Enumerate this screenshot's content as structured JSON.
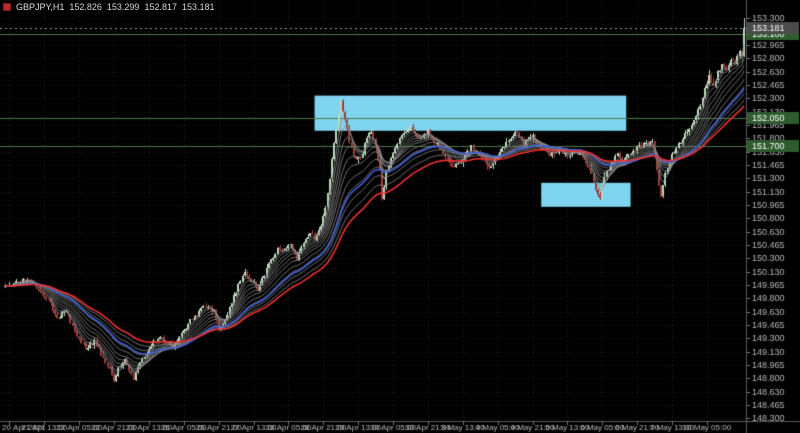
{
  "window_info": {
    "symbol_period": "GBPJPY,H1",
    "quote": {
      "open": "152.826",
      "high": "153.299",
      "low": "152.817",
      "close": "153.181"
    }
  },
  "colors": {
    "background": "#000000",
    "bull": "#bcd8bc",
    "bear": "#9e3c3c",
    "ema_fast_blue": "#3f5fd8",
    "ema_slow_red": "#f03030",
    "ribbon_gray": "#8c8c8c",
    "level_green": "#4a7a4a",
    "level_badge_bg": "#2e5c2e",
    "zone_blue": "#7fd4ef",
    "axis_text": "#b8b8b8",
    "badge_bg": "#4a4a4a",
    "badge_text": "#ffffff",
    "grid": "#232323",
    "separator": "#5a5a5a",
    "bid_line": "#9a9a9a",
    "tick": "#777777"
  },
  "chart_data": {
    "type": "candlestick",
    "symbol": "GBPJPY",
    "timeframe": "H1",
    "bars_total": 340,
    "seed": 11,
    "x_axis": {
      "first_label_bar": 2,
      "label_step_bars": 16,
      "labels": [
        "20 Apr 2021",
        "21 Apr 13:00",
        "22 Apr 05:00",
        "22 Apr 21:00",
        "23 Apr 13:00",
        "26 Apr 05:00",
        "26 Apr 21:00",
        "27 Apr 13:00",
        "28 Apr 05:00",
        "28 Apr 21:00",
        "29 Apr 13:00",
        "30 Apr 05:00",
        "30 Apr 21:00",
        "3 May 13:00",
        "4 May 05:00",
        "4 May 21:00",
        "5 May 13:00",
        "6 May 05:00",
        "6 May 21:00",
        "7 May 13:00",
        "10 May 05:00"
      ]
    },
    "y_axis": {
      "price_top": 153.525,
      "price_bottom": 148.2625,
      "labels": [
        "153.300",
        "153.135",
        "152.965",
        "152.800",
        "152.630",
        "152.465",
        "152.300",
        "152.130",
        "151.965",
        "151.800",
        "151.630",
        "151.465",
        "151.300",
        "151.130",
        "150.965",
        "150.800",
        "150.630",
        "150.465",
        "150.300",
        "150.130",
        "149.965",
        "149.800",
        "149.630",
        "149.465",
        "149.300",
        "149.130",
        "148.965",
        "148.800",
        "148.630",
        "148.465",
        "148.300"
      ]
    },
    "price_path_anchors": [
      [
        0,
        149.95
      ],
      [
        6,
        150.0
      ],
      [
        11,
        150.05
      ],
      [
        15,
        149.92
      ],
      [
        20,
        149.78
      ],
      [
        24,
        149.55
      ],
      [
        28,
        149.65
      ],
      [
        33,
        149.32
      ],
      [
        37,
        149.18
      ],
      [
        41,
        149.26
      ],
      [
        45,
        149.05
      ],
      [
        48,
        148.9
      ],
      [
        50,
        148.78
      ],
      [
        52,
        148.92
      ],
      [
        55,
        149.02
      ],
      [
        57,
        148.88
      ],
      [
        59,
        148.8
      ],
      [
        62,
        149.0
      ],
      [
        65,
        149.12
      ],
      [
        68,
        149.25
      ],
      [
        71,
        149.34
      ],
      [
        74,
        149.26
      ],
      [
        77,
        149.18
      ],
      [
        80,
        149.32
      ],
      [
        84,
        149.48
      ],
      [
        88,
        149.6
      ],
      [
        92,
        149.7
      ],
      [
        96,
        149.62
      ],
      [
        98,
        149.42
      ],
      [
        101,
        149.52
      ],
      [
        104,
        149.76
      ],
      [
        107,
        149.95
      ],
      [
        110,
        150.12
      ],
      [
        113,
        150.02
      ],
      [
        116,
        149.92
      ],
      [
        119,
        150.1
      ],
      [
        122,
        150.28
      ],
      [
        125,
        150.42
      ],
      [
        128,
        150.38
      ],
      [
        131,
        150.48
      ],
      [
        134,
        150.3
      ],
      [
        137,
        150.48
      ],
      [
        140,
        150.6
      ],
      [
        142,
        150.55
      ],
      [
        145,
        150.72
      ],
      [
        147,
        150.95
      ],
      [
        149,
        151.3
      ],
      [
        151,
        151.75
      ],
      [
        153,
        152.1
      ],
      [
        154,
        152.26
      ],
      [
        156,
        152.04
      ],
      [
        158,
        151.76
      ],
      [
        161,
        151.52
      ],
      [
        164,
        151.6
      ],
      [
        166,
        151.82
      ],
      [
        168,
        151.88
      ],
      [
        170,
        151.66
      ],
      [
        172,
        151.4
      ],
      [
        173,
        151.02
      ],
      [
        175,
        151.38
      ],
      [
        178,
        151.6
      ],
      [
        182,
        151.86
      ],
      [
        186,
        151.92
      ],
      [
        190,
        151.78
      ],
      [
        194,
        151.88
      ],
      [
        198,
        151.72
      ],
      [
        202,
        151.54
      ],
      [
        206,
        151.42
      ],
      [
        210,
        151.56
      ],
      [
        214,
        151.68
      ],
      [
        218,
        151.58
      ],
      [
        222,
        151.44
      ],
      [
        226,
        151.58
      ],
      [
        230,
        151.74
      ],
      [
        234,
        151.88
      ],
      [
        238,
        151.72
      ],
      [
        242,
        151.82
      ],
      [
        246,
        151.68
      ],
      [
        250,
        151.58
      ],
      [
        254,
        151.66
      ],
      [
        258,
        151.56
      ],
      [
        262,
        151.64
      ],
      [
        266,
        151.5
      ],
      [
        269,
        151.36
      ],
      [
        271,
        151.16
      ],
      [
        273,
        151.06
      ],
      [
        275,
        151.3
      ],
      [
        278,
        151.48
      ],
      [
        281,
        151.58
      ],
      [
        284,
        151.5
      ],
      [
        287,
        151.62
      ],
      [
        290,
        151.68
      ],
      [
        294,
        151.72
      ],
      [
        297,
        151.74
      ],
      [
        299,
        151.38
      ],
      [
        301,
        151.06
      ],
      [
        303,
        151.36
      ],
      [
        306,
        151.6
      ],
      [
        309,
        151.72
      ],
      [
        312,
        151.84
      ],
      [
        315,
        151.94
      ],
      [
        317,
        152.06
      ],
      [
        319,
        152.22
      ],
      [
        321,
        152.4
      ],
      [
        323,
        152.56
      ],
      [
        325,
        152.44
      ],
      [
        327,
        152.62
      ],
      [
        329,
        152.72
      ],
      [
        331,
        152.64
      ],
      [
        333,
        152.78
      ],
      [
        335,
        152.72
      ],
      [
        337,
        152.9
      ],
      [
        338,
        152.83
      ],
      [
        339,
        153.18
      ]
    ],
    "last_candle_ohlc": [
      152.826,
      153.299,
      152.817,
      153.181
    ],
    "indicators": {
      "ema_ribbon_periods": [
        4,
        6,
        9,
        12,
        16,
        20,
        26,
        32,
        39,
        47
      ],
      "ema_blue_period": 34,
      "ema_red_period": 55
    },
    "horizontal_lines": [
      {
        "price": 153.1,
        "label": "153.100"
      },
      {
        "price": 152.05,
        "label": "152.050"
      },
      {
        "price": 151.7,
        "label": "151.700"
      }
    ],
    "zones": [
      {
        "bar_start": 142,
        "bar_end": 285,
        "price_top": 152.33,
        "price_bottom": 151.89
      },
      {
        "bar_start": 246,
        "bar_end": 287,
        "price_top": 151.24,
        "price_bottom": 150.94
      }
    ],
    "bid": {
      "price": 153.181,
      "label": "153.181"
    }
  }
}
